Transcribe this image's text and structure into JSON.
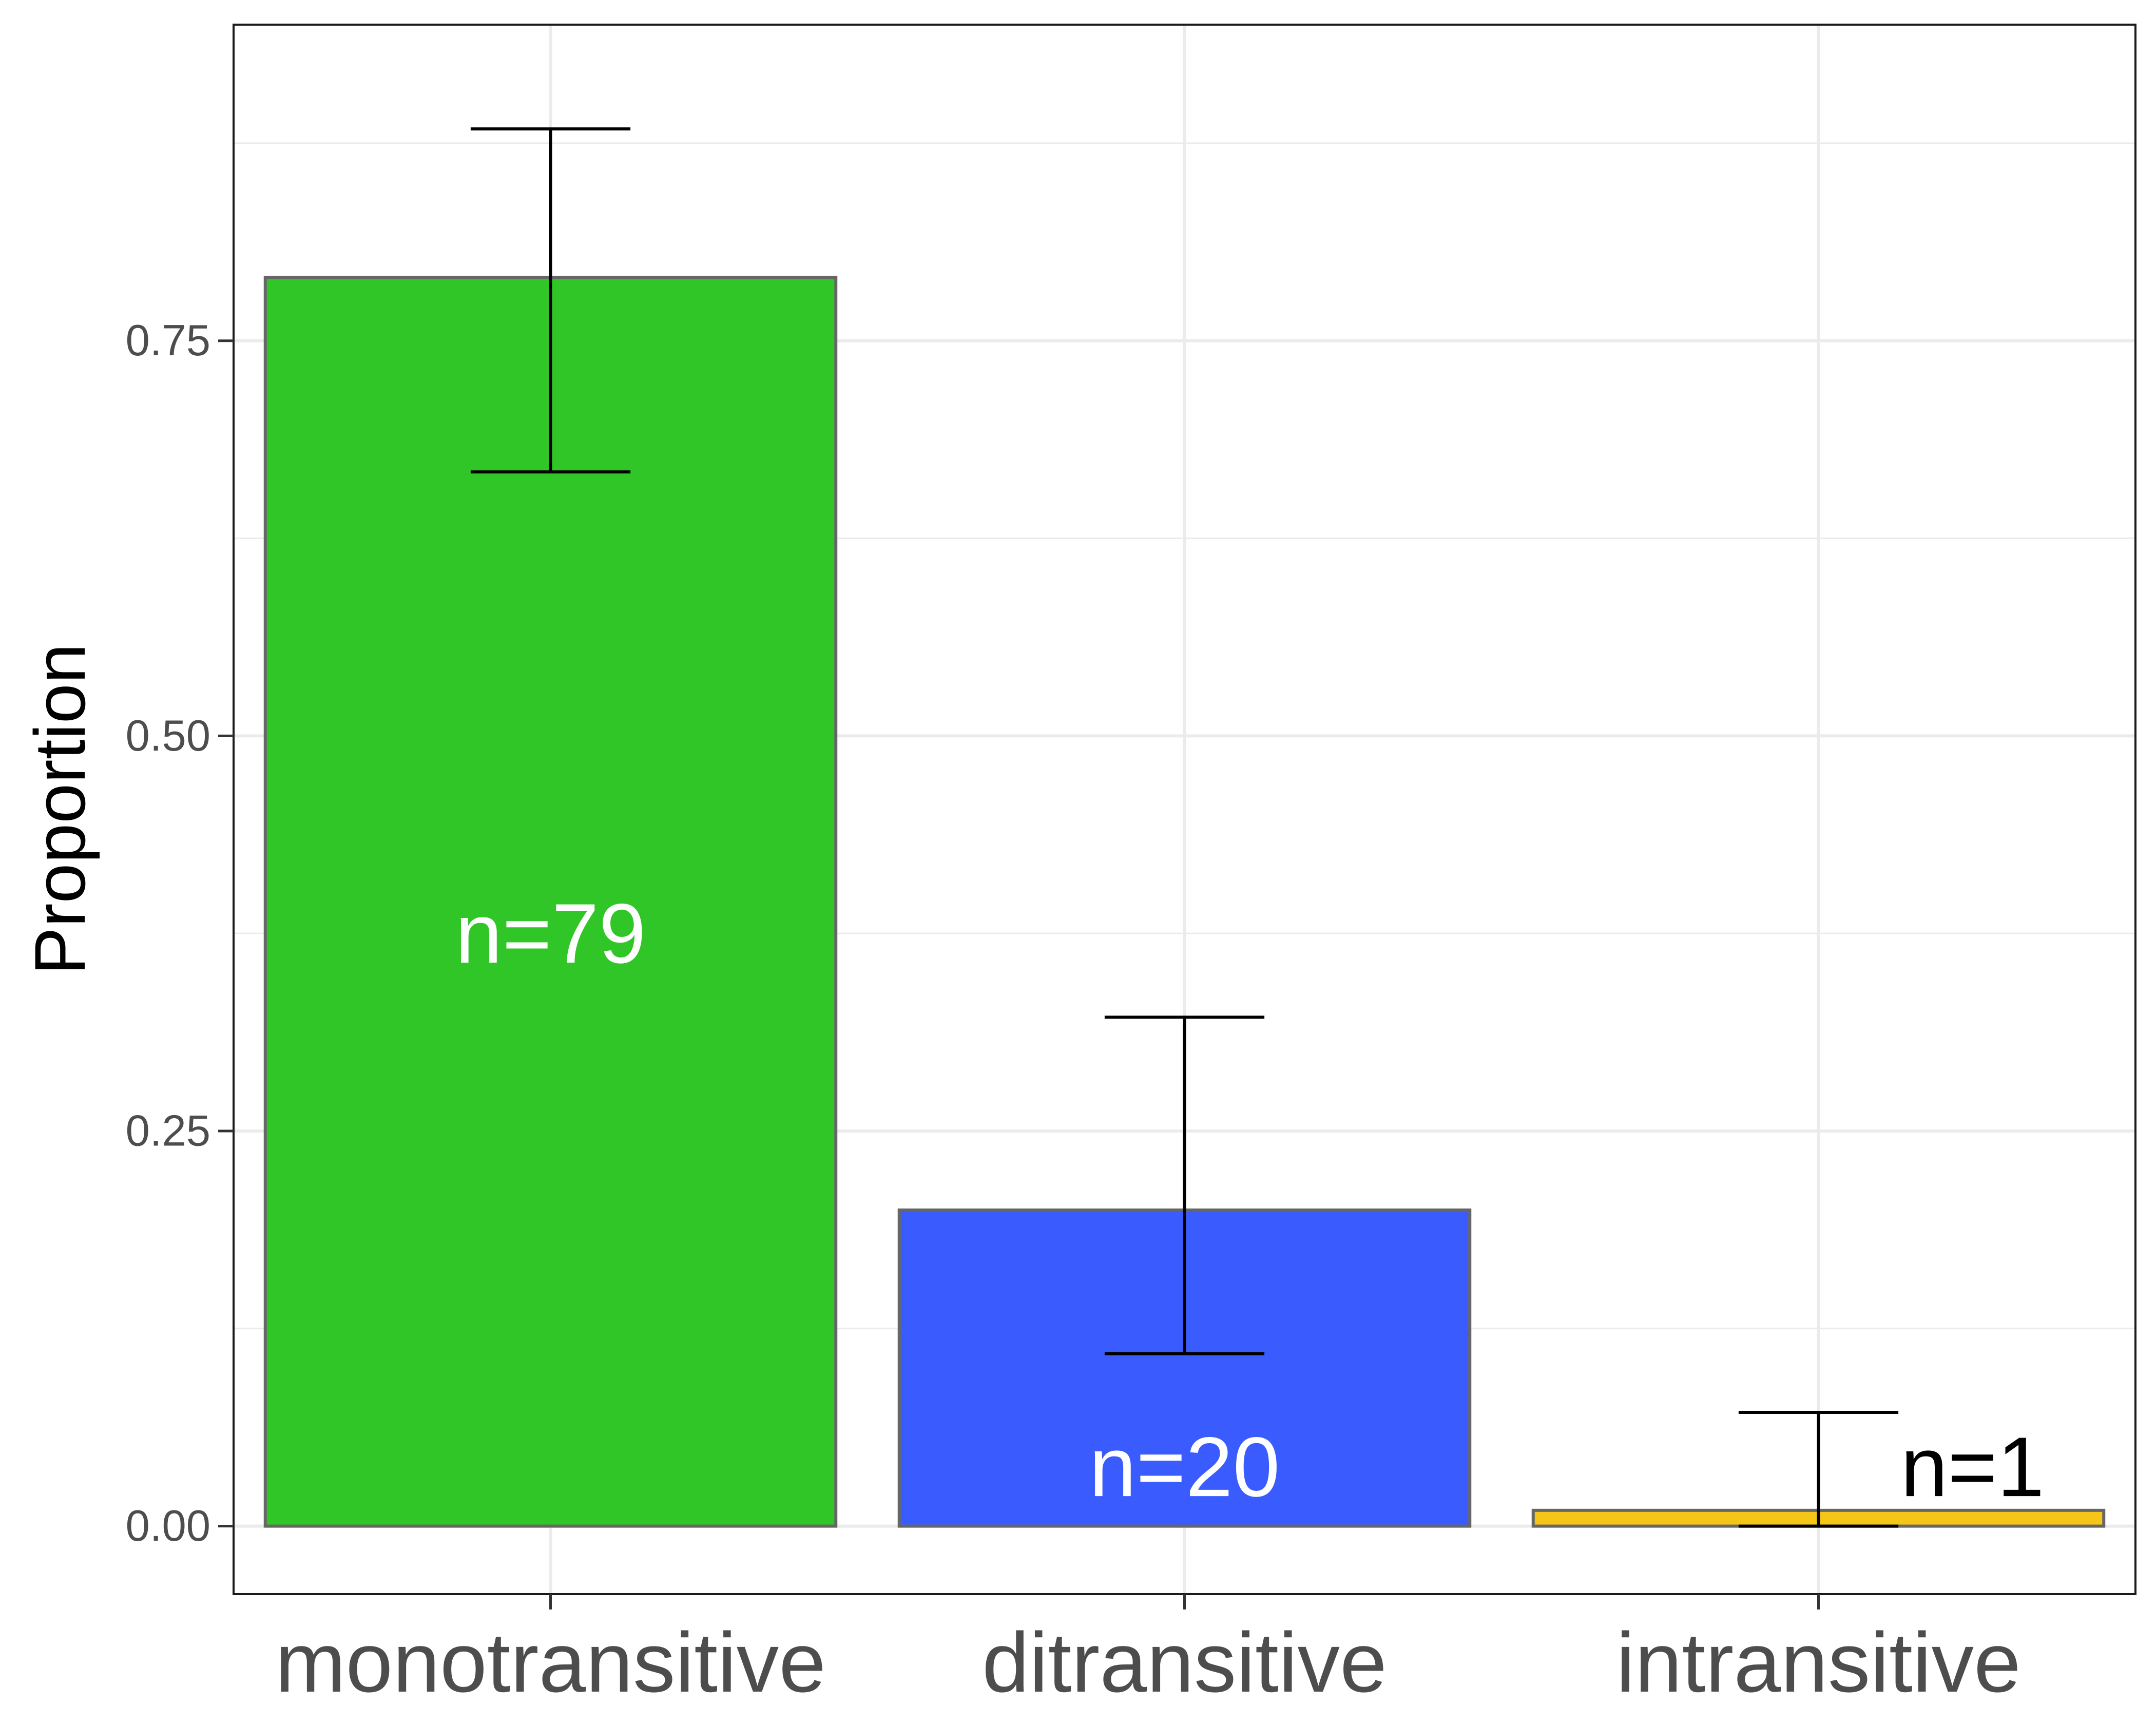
{
  "chart_data": {
    "type": "bar",
    "categories": [
      "monotransitive",
      "ditransitive",
      "intransitive"
    ],
    "values": [
      0.79,
      0.2,
      0.01
    ],
    "error_low": [
      0.667,
      0.109,
      0.0
    ],
    "error_high": [
      0.884,
      0.322,
      0.072
    ],
    "bar_labels": [
      "n=79",
      "n=20",
      "n=1"
    ],
    "bar_label_colors": [
      "#ffffff",
      "#ffffff",
      "#000000"
    ],
    "colors": [
      "#31c627",
      "#3a5cff",
      "#f5c518"
    ],
    "ylabel": "Proportion",
    "xlabel": "",
    "title": "",
    "ylim": [
      -0.043,
      0.95
    ],
    "yticks": [
      0.0,
      0.25,
      0.5,
      0.75
    ],
    "ytick_labels": [
      "0.00",
      "0.25",
      "0.50",
      "0.75"
    ],
    "grid": true,
    "legend": "none"
  }
}
